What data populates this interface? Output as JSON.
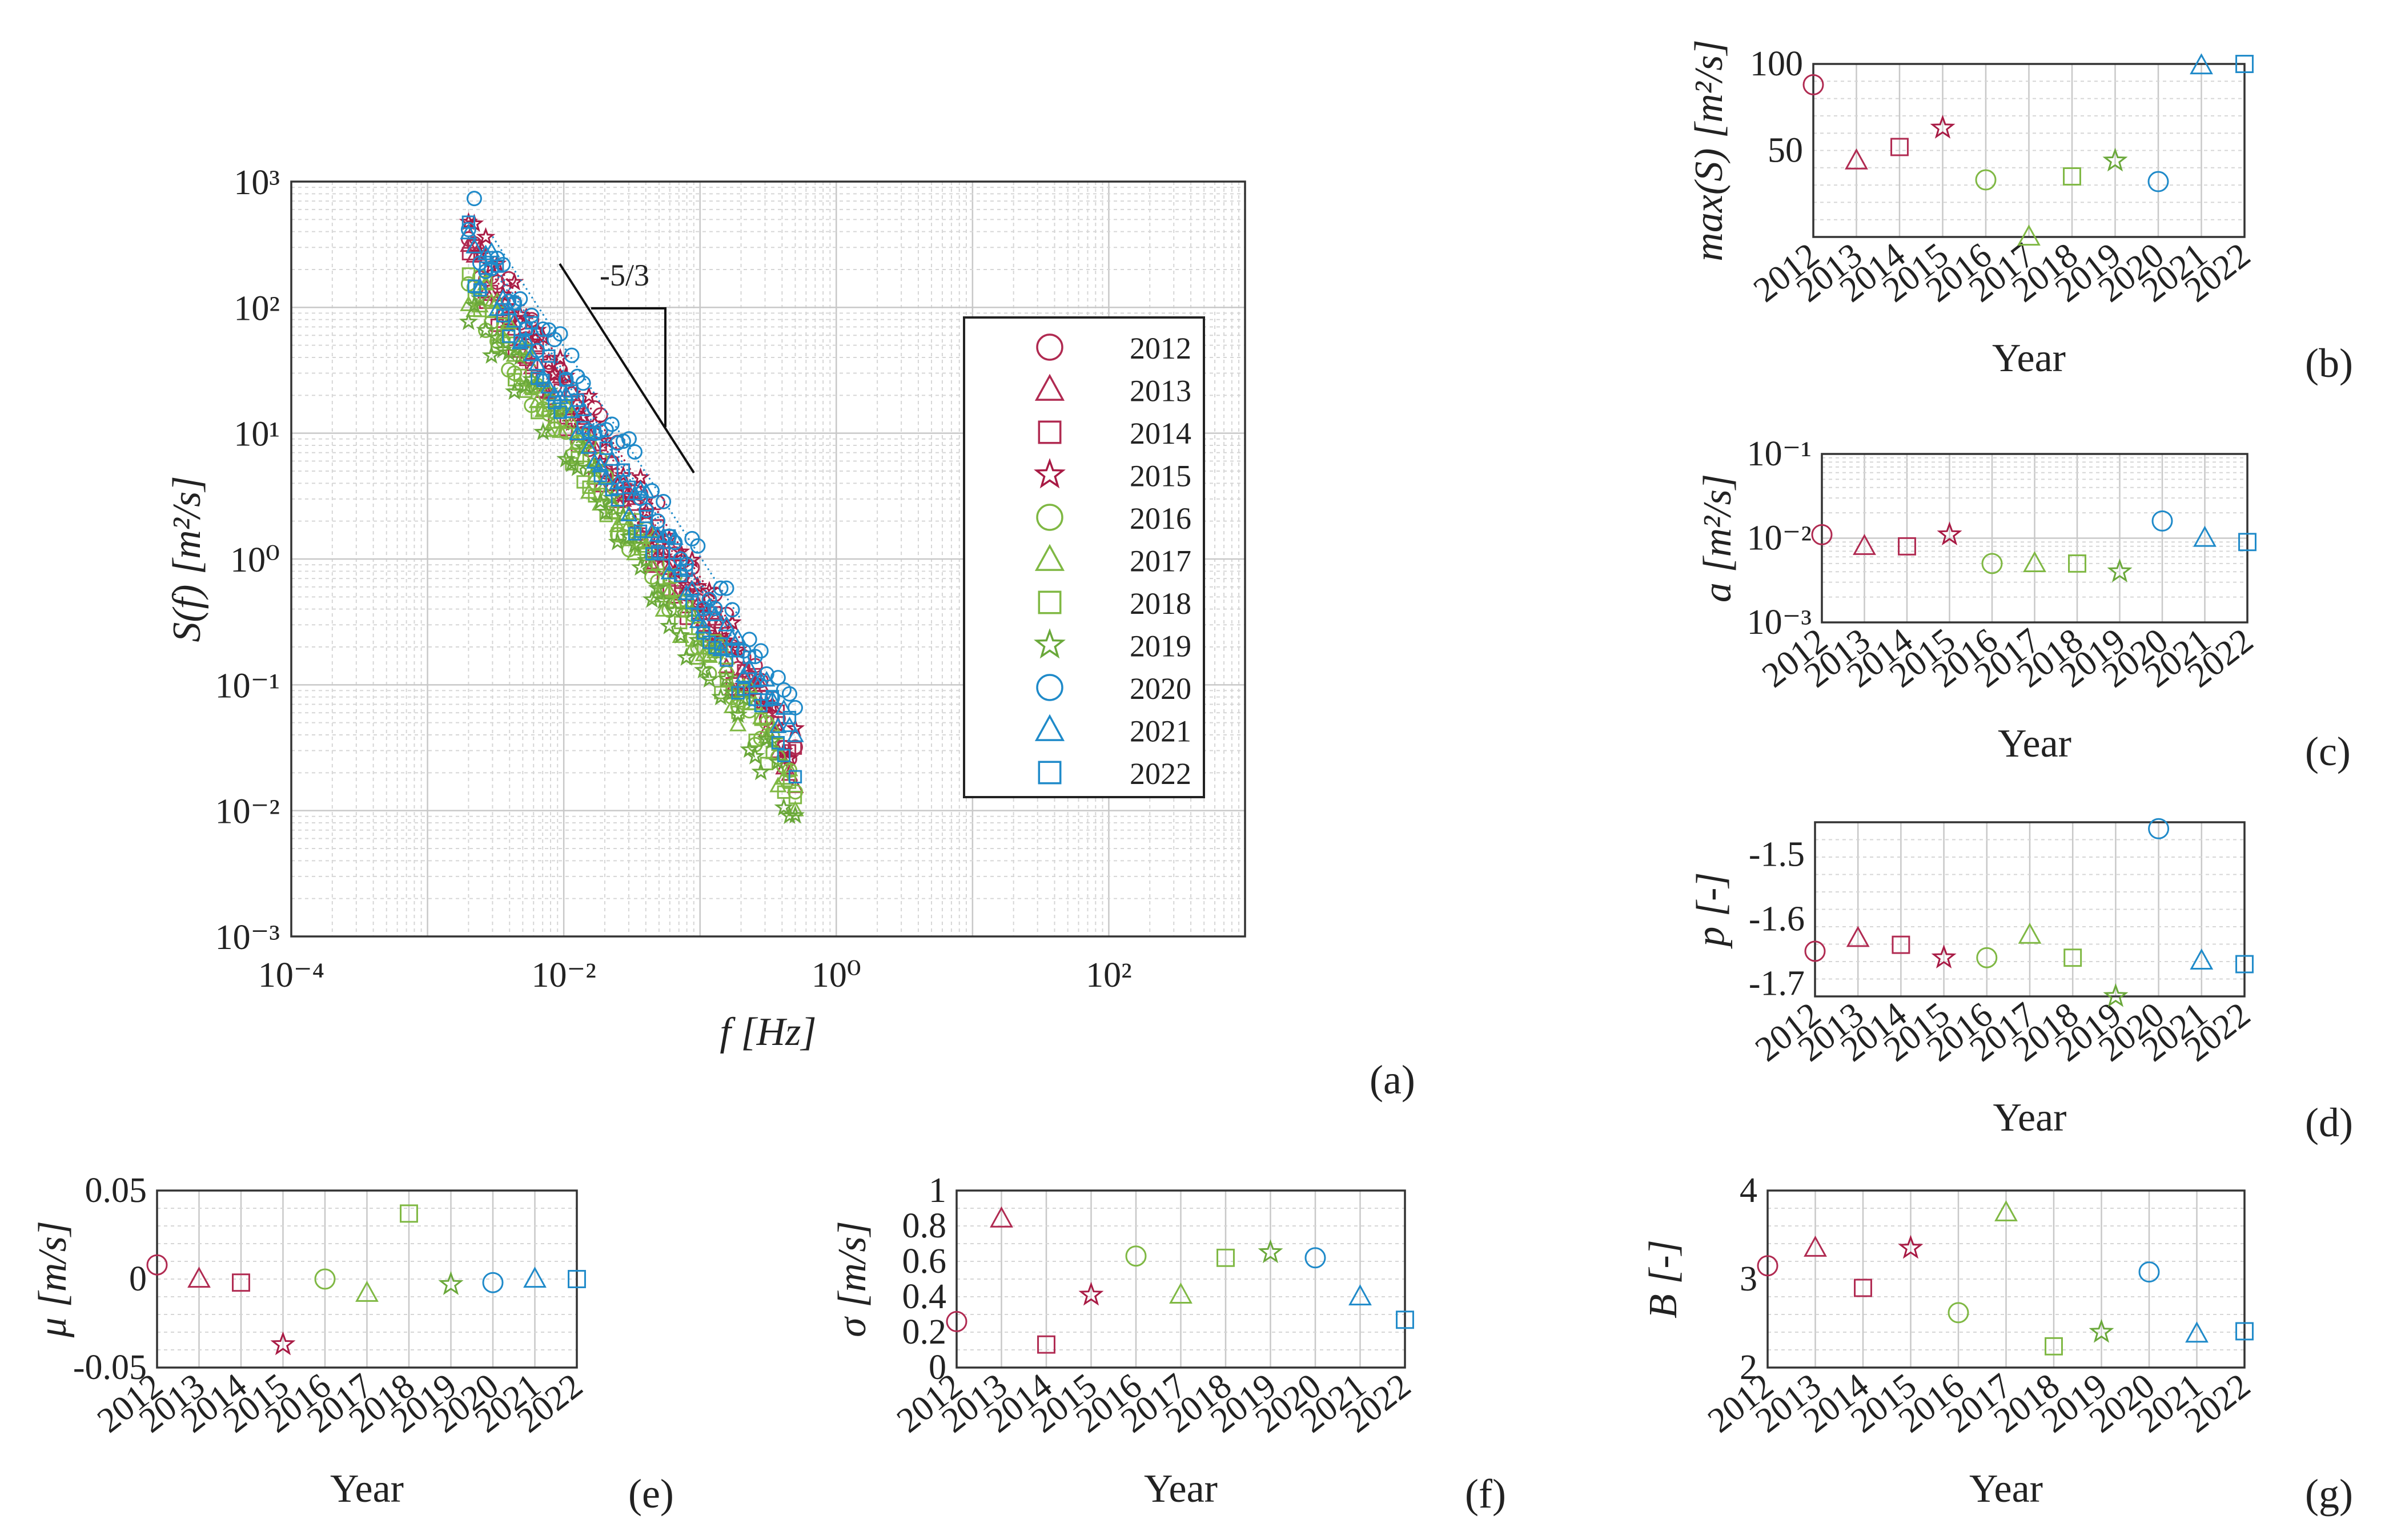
{
  "colors": {
    "c2012": "#b02a51",
    "c2013": "#b02a51",
    "c2014": "#b02a51",
    "c2015": "#a81a44",
    "c2016": "#7fb843",
    "c2017": "#7fb843",
    "c2018": "#7fb843",
    "c2019": "#6aa83a",
    "c2020": "#1f8ac9",
    "c2021": "#1f8ac9",
    "c2022": "#1f8ac9"
  },
  "chart_data": [
    {
      "id": "a",
      "type": "scatter",
      "panel_label": "(a)",
      "panel_letter": "a",
      "xlabel": "f [Hz]",
      "ylabel": "S(f) [m²/s]",
      "xscale": "log",
      "yscale": "log",
      "xlim": [
        0.0001,
        1000
      ],
      "ylim": [
        0.001,
        1000
      ],
      "xticks": [
        "10⁻⁴",
        "10⁻²",
        "10⁰",
        "10²"
      ],
      "yticks": [
        "10³",
        "10²",
        "10¹",
        "10⁰",
        "10⁻¹",
        "10⁻²",
        "10⁻³"
      ],
      "slope_annotation": "-5/3",
      "legend_position": "right",
      "legend": [
        {
          "year": "2012",
          "marker": "circle"
        },
        {
          "year": "2013",
          "marker": "triangle"
        },
        {
          "year": "2014",
          "marker": "square"
        },
        {
          "year": "2015",
          "marker": "star"
        },
        {
          "year": "2016",
          "marker": "circle"
        },
        {
          "year": "2017",
          "marker": "triangle"
        },
        {
          "year": "2018",
          "marker": "square"
        },
        {
          "year": "2019",
          "marker": "star"
        },
        {
          "year": "2020",
          "marker": "circle"
        },
        {
          "year": "2021",
          "marker": "triangle"
        },
        {
          "year": "2022",
          "marker": "square"
        }
      ],
      "series_fit": {
        "exponent": -1.67,
        "f_range": [
          0.002,
          0.5
        ]
      },
      "series_amplitude": {
        "2012": 0.011,
        "2013": 0.008,
        "2014": 0.008,
        "2015": 0.011,
        "2016": 0.005,
        "2017": 0.005,
        "2018": 0.005,
        "2019": 0.004,
        "2020": 0.016,
        "2021": 0.01,
        "2022": 0.009
      }
    },
    {
      "id": "b",
      "type": "scatter",
      "panel_label": "(b)",
      "panel_letter": "b",
      "xlabel": "Year",
      "ylabel": "max(S) [m²/s]",
      "ylim": [
        0,
        100
      ],
      "yticks": [
        50,
        100
      ],
      "categories": [
        "2012",
        "2013",
        "2014",
        "2015",
        "2016",
        "2017",
        "2018",
        "2019",
        "2020",
        "2021",
        "2022"
      ],
      "values": [
        88,
        44,
        52,
        63,
        33,
        0,
        35,
        44,
        32,
        99,
        100
      ]
    },
    {
      "id": "c",
      "type": "scatter",
      "panel_label": "(c)",
      "panel_letter": "c",
      "xlabel": "Year",
      "ylabel": "a [m²/s]",
      "yscale": "log",
      "ylim": [
        0.001,
        0.1
      ],
      "yticks": [
        "10⁻¹",
        "10⁻²",
        "10⁻³"
      ],
      "categories": [
        "2012",
        "2013",
        "2014",
        "2015",
        "2016",
        "2017",
        "2018",
        "2019",
        "2020",
        "2021",
        "2022"
      ],
      "values": [
        0.011,
        0.008,
        0.008,
        0.011,
        0.005,
        0.005,
        0.005,
        0.004,
        0.016,
        0.01,
        0.009
      ]
    },
    {
      "id": "d",
      "type": "scatter",
      "panel_label": "(d)",
      "panel_letter": "d",
      "xlabel": "Year",
      "ylabel": "p [-]",
      "ylim": [
        -1.72,
        -1.45
      ],
      "yticks": [
        -1.5,
        -1.6,
        -1.7
      ],
      "categories": [
        "2012",
        "2013",
        "2014",
        "2015",
        "2016",
        "2017",
        "2018",
        "2019",
        "2020",
        "2021",
        "2022"
      ],
      "values": [
        -1.65,
        -1.63,
        -1.64,
        -1.66,
        -1.66,
        -1.625,
        -1.66,
        -1.72,
        -1.46,
        -1.665,
        -1.67
      ]
    },
    {
      "id": "e",
      "type": "scatter",
      "panel_label": "(e)",
      "panel_letter": "e",
      "xlabel": "Year",
      "ylabel": "μ [m/s]",
      "ylim": [
        -0.05,
        0.05
      ],
      "yticks": [
        0.05,
        0,
        -0.05
      ],
      "categories": [
        "2012",
        "2013",
        "2014",
        "2015",
        "2016",
        "2017",
        "2018",
        "2019",
        "2020",
        "2021",
        "2022"
      ],
      "values": [
        0.008,
        0.0,
        -0.002,
        -0.037,
        0.0,
        -0.008,
        0.037,
        -0.003,
        -0.002,
        0.0,
        0.0
      ]
    },
    {
      "id": "f",
      "type": "scatter",
      "panel_label": "(f)",
      "panel_letter": "f",
      "xlabel": "Year",
      "ylabel": "σ [m/s]",
      "ylim": [
        0,
        1
      ],
      "yticks": [
        1,
        0.8,
        0.6,
        0.4,
        0.2,
        0
      ],
      "categories": [
        "2012",
        "2013",
        "2014",
        "2015",
        "2016",
        "2017",
        "2018",
        "2019",
        "2020",
        "2021",
        "2022"
      ],
      "values": [
        0.26,
        0.84,
        0.13,
        0.41,
        0.63,
        0.41,
        0.62,
        0.65,
        0.62,
        0.4,
        0.27
      ]
    },
    {
      "id": "g",
      "type": "scatter",
      "panel_label": "(g)",
      "panel_letter": "g",
      "xlabel": "Year",
      "ylabel": "B [-]",
      "ylim": [
        2,
        4
      ],
      "yticks": [
        4,
        3,
        2
      ],
      "categories": [
        "2012",
        "2013",
        "2014",
        "2015",
        "2016",
        "2017",
        "2018",
        "2019",
        "2020",
        "2021",
        "2022"
      ],
      "values": [
        3.15,
        3.35,
        2.9,
        3.35,
        2.62,
        3.75,
        2.24,
        2.4,
        3.08,
        2.38,
        2.41
      ]
    }
  ]
}
